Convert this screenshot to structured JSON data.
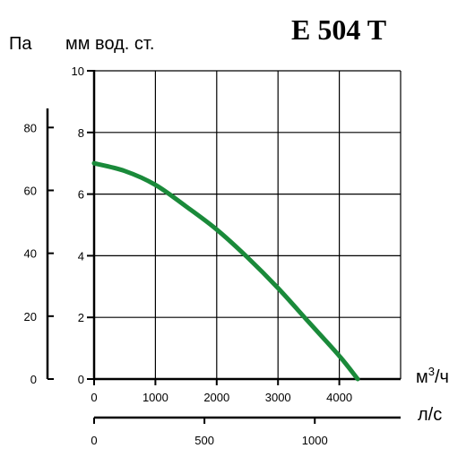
{
  "chart_data": {
    "type": "line",
    "title": "E 504 T",
    "y_left_unit": "Па",
    "y_right_unit": "мм  вод. ст.",
    "x_unit": "м³/ч",
    "x2_unit": "л/с",
    "xlim": [
      0,
      5000
    ],
    "ylim": [
      0,
      10
    ],
    "y_pa_ticks": [
      "0",
      "20",
      "40",
      "60",
      "80"
    ],
    "y_mm_ticks": [
      "0",
      "2",
      "4",
      "6",
      "8",
      "10"
    ],
    "x_ticks": [
      "0",
      "1000",
      "2000",
      "3000",
      "4000"
    ],
    "x2_ticks": [
      "0",
      "500",
      "1000"
    ],
    "grid": true,
    "series_color": "#1a8a3a",
    "series": [
      {
        "x": [
          0,
          500,
          1000,
          1500,
          2000,
          2500,
          3000,
          3500,
          4000,
          4300
        ],
        "y": [
          7.0,
          6.75,
          6.3,
          5.6,
          4.85,
          3.95,
          2.95,
          1.85,
          0.75,
          0
        ]
      }
    ]
  }
}
